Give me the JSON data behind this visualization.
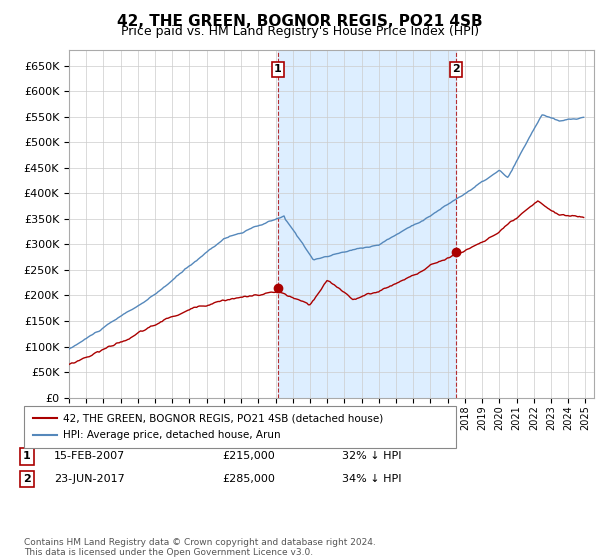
{
  "title": "42, THE GREEN, BOGNOR REGIS, PO21 4SB",
  "subtitle": "Price paid vs. HM Land Registry's House Price Index (HPI)",
  "ylim": [
    0,
    680000
  ],
  "yticks": [
    0,
    50000,
    100000,
    150000,
    200000,
    250000,
    300000,
    350000,
    400000,
    450000,
    500000,
    550000,
    600000,
    650000
  ],
  "xlim_start": 1995.0,
  "xlim_end": 2025.5,
  "purchase1_x": 2007.12,
  "purchase1_y": 215000,
  "purchase1_label": "15-FEB-2007",
  "purchase1_price": "£215,000",
  "purchase1_hpi": "32% ↓ HPI",
  "purchase2_x": 2017.48,
  "purchase2_y": 285000,
  "purchase2_label": "23-JUN-2017",
  "purchase2_price": "£285,000",
  "purchase2_hpi": "34% ↓ HPI",
  "red_color": "#aa0000",
  "blue_color": "#5588bb",
  "fill_color": "#ddeeff",
  "legend_label1": "42, THE GREEN, BOGNOR REGIS, PO21 4SB (detached house)",
  "legend_label2": "HPI: Average price, detached house, Arun",
  "footnote": "Contains HM Land Registry data © Crown copyright and database right 2024.\nThis data is licensed under the Open Government Licence v3.0.",
  "background_color": "#ffffff",
  "grid_color": "#cccccc"
}
